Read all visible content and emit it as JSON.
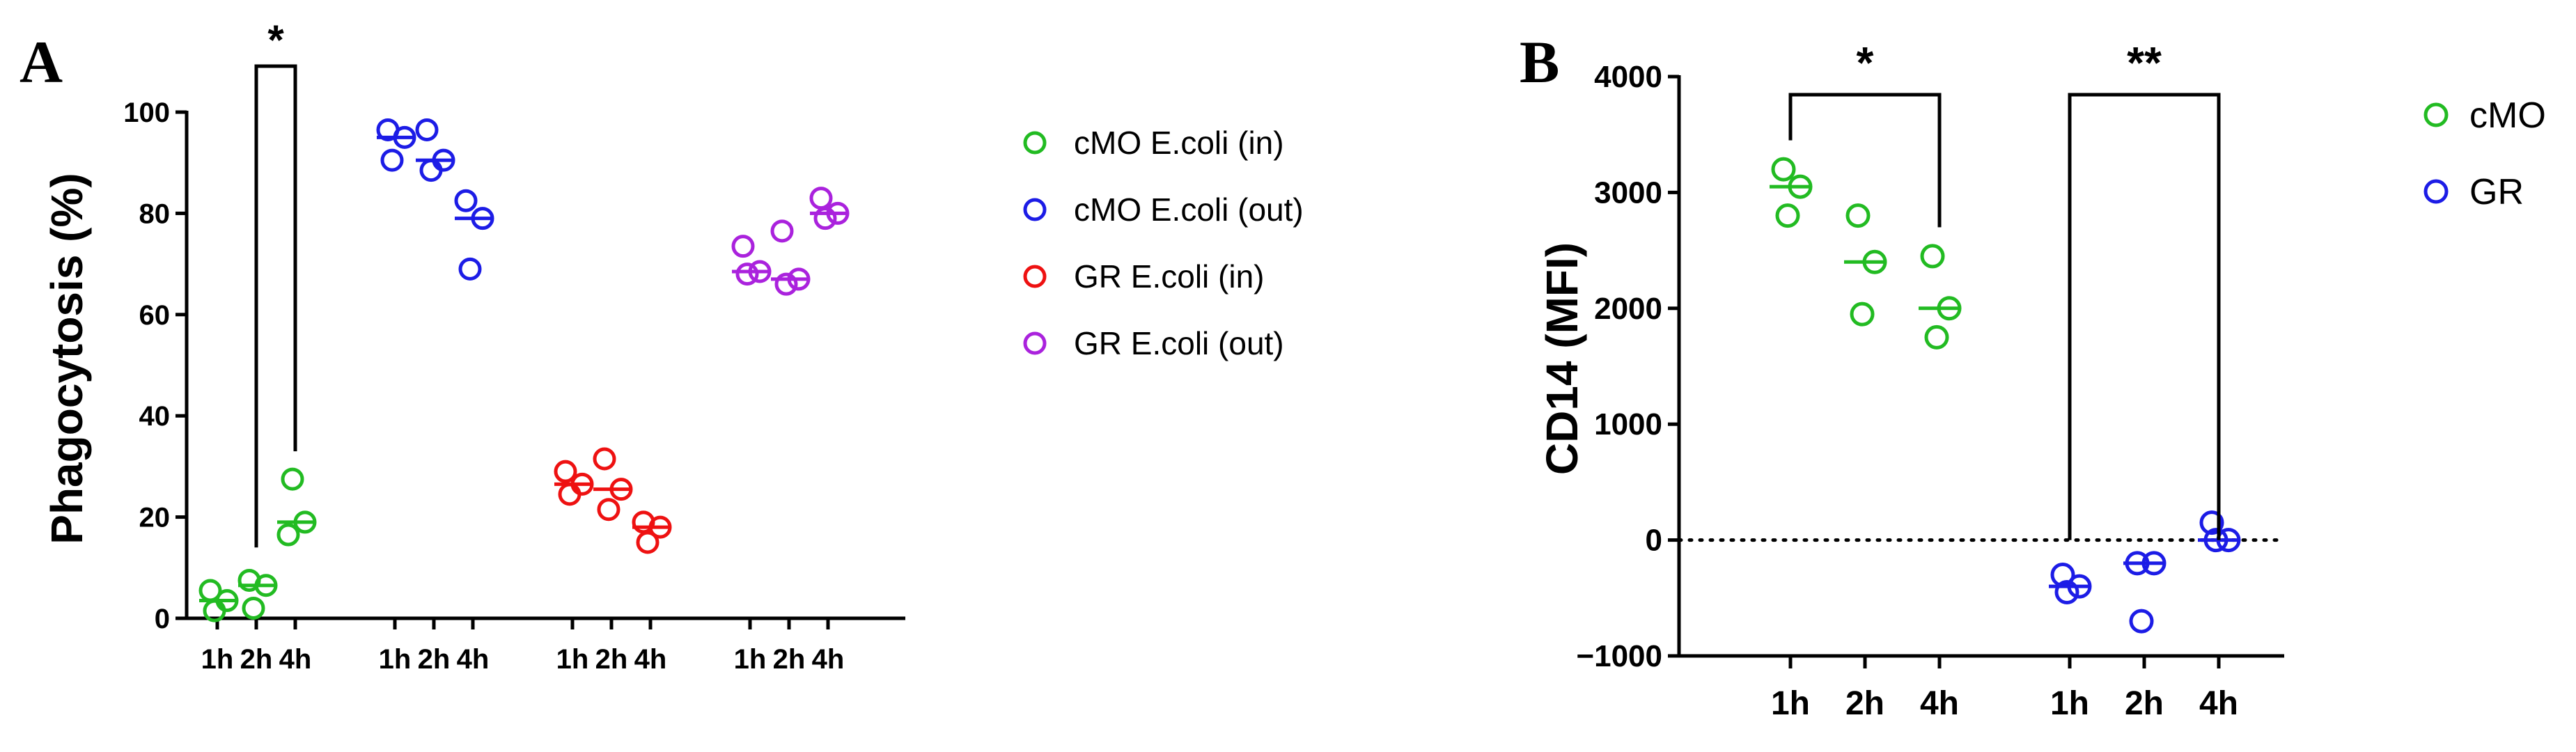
{
  "chart_data": [
    {
      "panel": "A",
      "type": "scatter",
      "ylabel": "Phagocytosis (%)",
      "ylim": [
        0,
        100
      ],
      "yticks": [
        0,
        20,
        40,
        60,
        80,
        100
      ],
      "xtick_labels": [
        "1h",
        "2h",
        "4h",
        "1h",
        "2h",
        "4h",
        "1h",
        "2h",
        "4h",
        "1h",
        "2h",
        "4h"
      ],
      "legend": "right",
      "series": [
        {
          "name": "cMO E.coli (in)",
          "color": "#22bb22",
          "points": [
            [
              [
                1,
                5.5
              ],
              [
                2,
                3.5
              ],
              [
                3,
                1.5
              ]
            ],
            [
              [
                4,
                7.5
              ],
              [
                5,
                6.5
              ],
              [
                6,
                2
              ]
            ],
            [
              [
                7,
                16.5
              ],
              [
                8,
                19
              ],
              [
                9,
                27.5
              ]
            ]
          ],
          "medians": [
            3.5,
            6.5,
            19
          ]
        },
        {
          "name": "cMO E.coli (out)",
          "color": "#1c1ce6",
          "points": [
            [
              [
                1,
                96.5
              ],
              [
                2,
                95
              ],
              [
                3,
                90.5
              ]
            ],
            [
              [
                4,
                96.5
              ],
              [
                5,
                90.5
              ],
              [
                6,
                88.5
              ]
            ],
            [
              [
                7,
                82.5
              ],
              [
                8,
                79
              ],
              [
                9,
                69
              ]
            ]
          ],
          "medians": [
            95,
            90.5,
            79
          ]
        },
        {
          "name": "GR E.coli (in)",
          "color": "#ee1111",
          "points": [
            [
              [
                1,
                29
              ],
              [
                2,
                26.5
              ],
              [
                3,
                24.5
              ]
            ],
            [
              [
                4,
                31.5
              ],
              [
                5,
                25.5
              ],
              [
                6,
                21.5
              ]
            ],
            [
              [
                7,
                19
              ],
              [
                8,
                18
              ],
              [
                9,
                15
              ]
            ]
          ],
          "medians": [
            26.5,
            25.5,
            18
          ]
        },
        {
          "name": "GR E.coli (out)",
          "color": "#aa22dd",
          "points": [
            [
              [
                1,
                73.5
              ],
              [
                2,
                68.5
              ],
              [
                3,
                68
              ]
            ],
            [
              [
                4,
                76.5
              ],
              [
                5,
                67
              ],
              [
                6,
                66
              ]
            ],
            [
              [
                7,
                83
              ],
              [
                8,
                80
              ],
              [
                9,
                79
              ]
            ]
          ],
          "medians": [
            68.5,
            67,
            80
          ]
        }
      ],
      "significance": [
        {
          "label": "*",
          "from": "cMO E.coli (in) 2h",
          "to": "cMO E.coli (in) 4h"
        }
      ]
    },
    {
      "panel": "B",
      "type": "scatter",
      "ylabel": "CD14 (MFI)",
      "ylim": [
        -1000,
        4000
      ],
      "yticks": [
        -1000,
        0,
        1000,
        2000,
        3000,
        4000
      ],
      "ytick_labels": [
        "−1000",
        "0",
        "1000",
        "2000",
        "3000",
        "4000"
      ],
      "xtick_labels": [
        "1h",
        "2h",
        "4h",
        "1h",
        "2h",
        "4h"
      ],
      "zero_line": "dotted",
      "legend": "top-right",
      "series": [
        {
          "name": "cMO",
          "color": "#22bb22",
          "points": [
            [
              [
                1,
                3200
              ],
              [
                2,
                3050
              ],
              [
                3,
                2800
              ]
            ],
            [
              [
                4,
                2800
              ],
              [
                5,
                2400
              ],
              [
                6,
                1950
              ]
            ],
            [
              [
                7,
                2450
              ],
              [
                8,
                2000
              ],
              [
                9,
                1750
              ]
            ]
          ],
          "medians": [
            3050,
            2400,
            2000
          ]
        },
        {
          "name": "GR",
          "color": "#1c1ce6",
          "points": [
            [
              [
                1,
                -300
              ],
              [
                2,
                -400
              ],
              [
                3,
                -450
              ]
            ],
            [
              [
                4,
                -200
              ],
              [
                5,
                -200
              ],
              [
                6,
                -700
              ]
            ],
            [
              [
                7,
                150
              ],
              [
                8,
                0
              ],
              [
                9,
                0
              ]
            ]
          ],
          "medians": [
            -400,
            -200,
            0
          ]
        }
      ],
      "significance": [
        {
          "label": "*",
          "from": "cMO 1h",
          "to": "cMO 4h"
        },
        {
          "label": "**",
          "from": "GR 1h",
          "to": "GR 4h"
        }
      ]
    }
  ]
}
